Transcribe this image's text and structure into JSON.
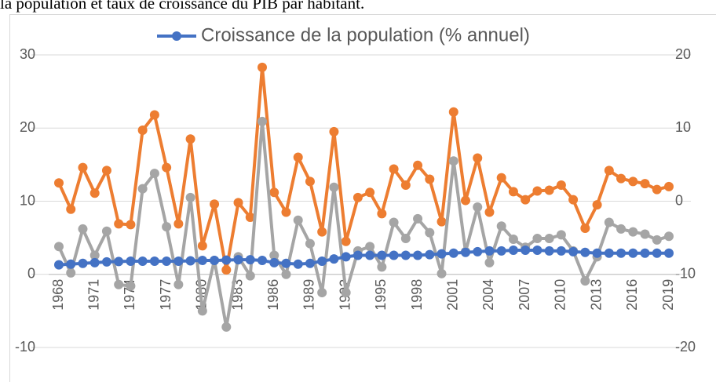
{
  "chart_data": {
    "type": "line",
    "title": "la population et taux de croissance du PIB par habitant.",
    "categories": [
      "1968",
      null,
      null,
      "1971",
      null,
      null,
      "1974",
      null,
      null,
      "1977",
      null,
      null,
      "1980",
      null,
      null,
      "1983",
      null,
      null,
      "1986",
      null,
      null,
      "1989",
      null,
      null,
      "1992",
      null,
      null,
      "1995",
      null,
      null,
      "1998",
      null,
      null,
      "2001",
      null,
      null,
      "2004",
      null,
      null,
      "2007",
      null,
      null,
      "2010",
      null,
      null,
      "2013",
      null,
      null,
      "2016",
      null,
      null,
      "2019"
    ],
    "series": [
      {
        "name": "Croissance de la population (% annuel)",
        "color": "#4472c4",
        "values": [
          1.3,
          1.4,
          1.5,
          1.6,
          1.7,
          1.75,
          1.8,
          1.8,
          1.8,
          1.8,
          1.8,
          1.85,
          1.9,
          1.9,
          1.95,
          2.0,
          2.0,
          1.9,
          1.6,
          1.5,
          1.4,
          1.5,
          1.8,
          2.1,
          2.4,
          2.6,
          2.6,
          2.6,
          2.6,
          2.6,
          2.6,
          2.7,
          2.8,
          2.9,
          3.0,
          3.1,
          3.2,
          3.2,
          3.3,
          3.3,
          3.3,
          3.2,
          3.2,
          3.1,
          3.0,
          2.9,
          2.9,
          2.9,
          2.9,
          2.9,
          2.9,
          2.9
        ]
      },
      {
        "color": "#ed7d31",
        "axis": "y2",
        "values": [
          2.5,
          -1.1,
          4.6,
          1.1,
          4.2,
          -3.1,
          -3.2,
          9.7,
          11.8,
          4.6,
          -3.1,
          8.5,
          -6.1,
          -0.4,
          -9.4,
          -0.2,
          -2.2,
          18.3,
          1.2,
          -1.5,
          6.0,
          2.7,
          -4.2,
          9.5,
          -5.5,
          0.5,
          1.2,
          -1.7,
          4.4,
          2.2,
          4.9,
          3.0,
          -2.8,
          12.2,
          0.1,
          5.9,
          -1.5,
          3.2,
          1.3,
          0.2,
          1.4,
          1.5,
          2.2,
          0.2,
          -3.7,
          -0.5,
          4.2,
          3.1,
          2.7,
          2.4,
          1.6,
          2.0
        ]
      },
      {
        "color": "#a5a5a5",
        "axis": "y2",
        "values": [
          -6.2,
          -9.8,
          -3.8,
          -7.4,
          -4.1,
          -11.4,
          -11.6,
          1.7,
          3.8,
          -3.5,
          -11.4,
          0.5,
          -15,
          -8.1,
          -17.2,
          -7.6,
          -10.2,
          10.9,
          -7.4,
          -10,
          -2.6,
          -5.8,
          -12.5,
          1.9,
          -12.5,
          -6.8,
          -6.2,
          -9.0,
          -2.9,
          -5.1,
          -2.4,
          -4.3,
          -9.9,
          5.5,
          -6.9,
          -0.8,
          -8.4,
          -3.4,
          -5.2,
          -6.3,
          -5.1,
          -5.1,
          -4.6,
          -6.8,
          -10.9,
          -7.6,
          -2.9,
          -3.8,
          -4.2,
          -4.5,
          -5.3,
          -4.8
        ]
      }
    ],
    "ylim": [
      -10,
      30
    ],
    "yticks": [
      -10,
      0,
      10,
      20,
      30
    ],
    "y2lim": [
      -20,
      20
    ],
    "y2ticks": [
      -20,
      -10,
      0,
      10,
      20
    ],
    "grid": true,
    "legend": "top"
  }
}
